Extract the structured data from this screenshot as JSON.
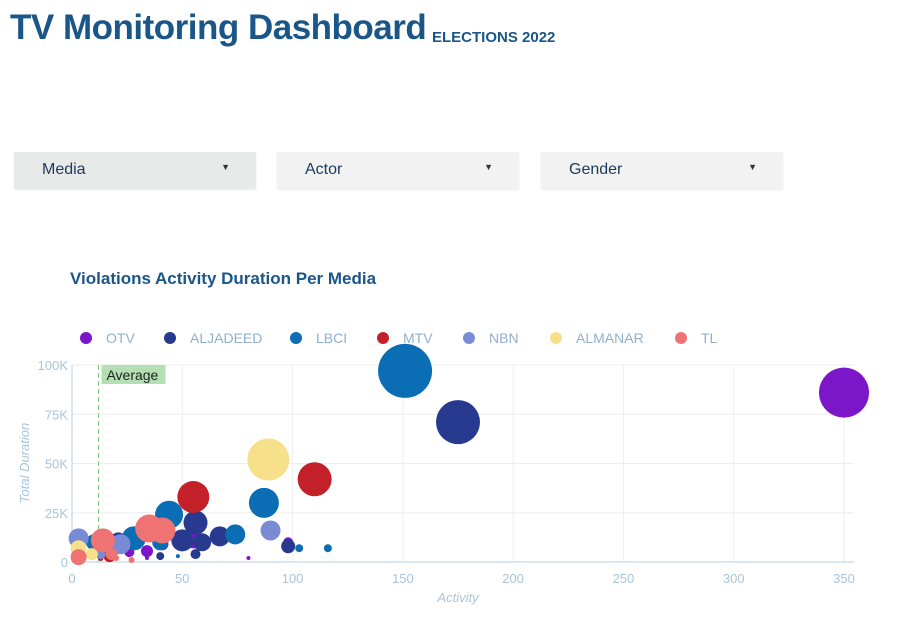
{
  "header": {
    "title": "TV Monitoring Dashboard",
    "subtitle": "ELECTIONS 2022"
  },
  "filters": [
    {
      "label": "Media"
    },
    {
      "label": "Actor"
    },
    {
      "label": "Gender"
    }
  ],
  "chart_data": {
    "type": "scatter",
    "title": "Violations Activity Duration Per Media",
    "xlabel": "Activity",
    "ylabel": "Total Duration",
    "xlim": [
      0,
      350
    ],
    "ylim": [
      0,
      100000
    ],
    "xticks": [
      "0",
      "50",
      "100",
      "150",
      "200",
      "250",
      "300",
      "350"
    ],
    "yticks": [
      "0",
      "25K",
      "50K",
      "75K",
      "100K"
    ],
    "grid": true,
    "legend": "top",
    "average_line": {
      "x": 12,
      "label": "Average",
      "color": "#b3dfb3"
    },
    "series": [
      {
        "name": "OTV",
        "color": "#7b16c9",
        "points": [
          [
            350,
            86000,
            25
          ],
          [
            34,
            5500,
            6
          ],
          [
            26,
            5000,
            5
          ],
          [
            41,
            9000,
            6
          ],
          [
            55,
            11000,
            8
          ],
          [
            98,
            10000,
            5
          ],
          [
            80,
            2000,
            2
          ],
          [
            34,
            2000,
            2
          ],
          [
            12,
            6000,
            6
          ]
        ]
      },
      {
        "name": "ALJADEED",
        "color": "#283a8f",
        "points": [
          [
            175,
            71000,
            22
          ],
          [
            56,
            20000,
            12
          ],
          [
            50,
            11000,
            11
          ],
          [
            67,
            13000,
            10
          ],
          [
            59,
            10000,
            9
          ],
          [
            98,
            8000,
            7
          ],
          [
            56,
            4000,
            5
          ],
          [
            40,
            3000,
            4
          ],
          [
            21,
            11000,
            8
          ]
        ]
      },
      {
        "name": "LBCI",
        "color": "#0b6db3",
        "points": [
          [
            151,
            97000,
            27
          ],
          [
            87,
            30000,
            15
          ],
          [
            44,
            24000,
            14
          ],
          [
            74,
            14000,
            10
          ],
          [
            28,
            12000,
            12
          ],
          [
            40,
            10000,
            8
          ],
          [
            103,
            7000,
            4
          ],
          [
            116,
            7000,
            4
          ],
          [
            48,
            3000,
            2
          ],
          [
            10,
            10000,
            8
          ]
        ]
      },
      {
        "name": "MTV",
        "color": "#c4202a",
        "points": [
          [
            55,
            33000,
            16
          ],
          [
            110,
            42000,
            17
          ],
          [
            3,
            8000,
            6
          ],
          [
            17,
            3000,
            6
          ],
          [
            13,
            2000,
            3
          ]
        ]
      },
      {
        "name": "NBN",
        "color": "#7a8bd6",
        "points": [
          [
            90,
            16000,
            10
          ],
          [
            3,
            12000,
            10
          ],
          [
            22,
            9000,
            10
          ],
          [
            13,
            4000,
            5
          ]
        ]
      },
      {
        "name": "ALMANAR",
        "color": "#f7e08a",
        "points": [
          [
            89,
            52000,
            21
          ],
          [
            3,
            7000,
            8
          ],
          [
            9,
            4000,
            6
          ]
        ]
      },
      {
        "name": "TL",
        "color": "#ef7373",
        "points": [
          [
            35,
            17000,
            14
          ],
          [
            41,
            16000,
            13
          ],
          [
            14,
            11000,
            12
          ],
          [
            3,
            2500,
            8
          ],
          [
            18,
            4000,
            6
          ],
          [
            27,
            1000,
            3
          ],
          [
            20,
            2000,
            3
          ]
        ]
      }
    ]
  }
}
